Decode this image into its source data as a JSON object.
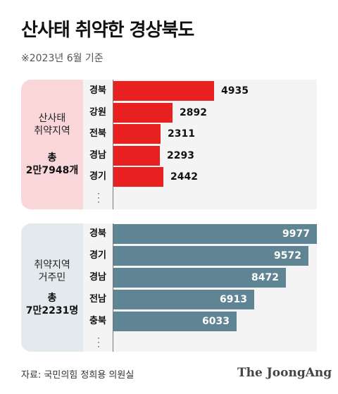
{
  "title": "산사태 취약한 경상북도",
  "subtitle": "※2023년 6월 기준",
  "source": "자료: 국민의힘 정희용 의원실",
  "logo": "The JoongAng",
  "colors": {
    "red": "#e8201f",
    "blue": "#5f8594"
  },
  "chart_data": [
    {
      "type": "bar",
      "orientation": "horizontal",
      "panel_label": [
        "산사태",
        "취약지역"
      ],
      "total_label": [
        "총",
        "2만7948개"
      ],
      "categories": [
        "경북",
        "강원",
        "전북",
        "경남",
        "경기"
      ],
      "values": [
        4935,
        2892,
        2311,
        2293,
        2442
      ],
      "labels": [
        "4935",
        "2892",
        "2311",
        "2293",
        "2442"
      ],
      "truncated": true,
      "color": "#e8201f"
    },
    {
      "type": "bar",
      "orientation": "horizontal",
      "panel_label": [
        "취약지역",
        "거주민"
      ],
      "total_label": [
        "총",
        "7만2231명"
      ],
      "categories": [
        "경북",
        "경기",
        "경남",
        "전남",
        "충북"
      ],
      "values": [
        9977,
        9572,
        8472,
        6913,
        6033
      ],
      "labels": [
        "9977",
        "9572",
        "8472",
        "6913",
        "6033"
      ],
      "truncated": true,
      "color": "#5f8594"
    }
  ]
}
